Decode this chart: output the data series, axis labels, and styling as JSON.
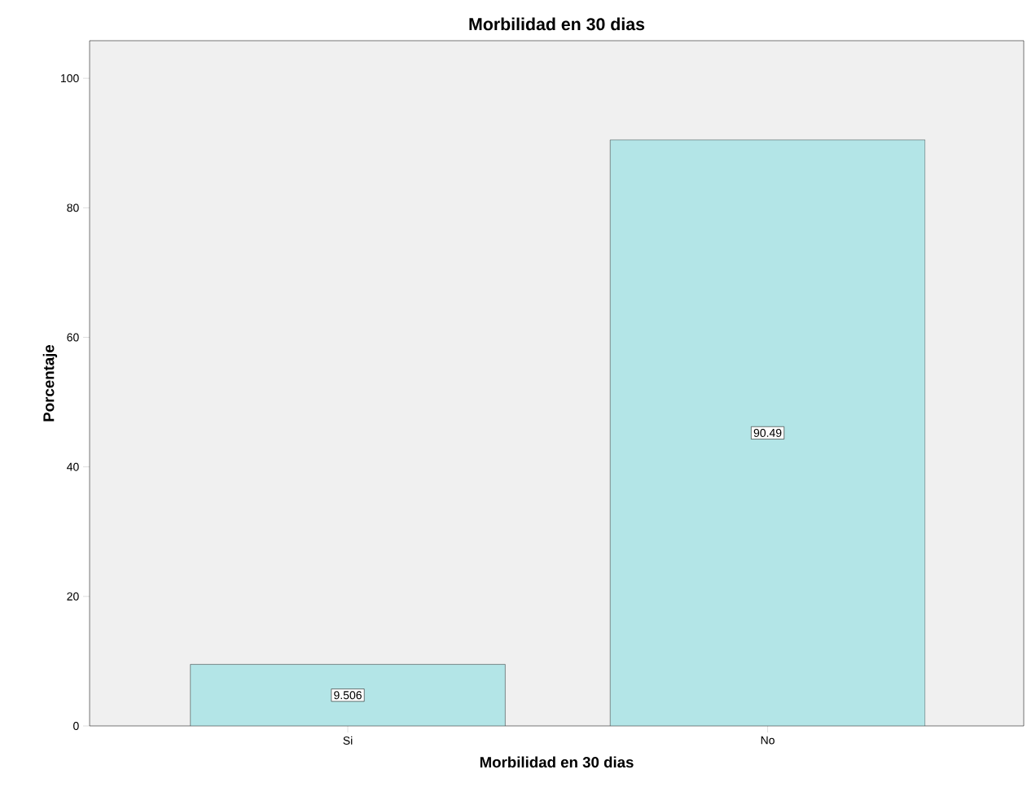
{
  "chart_data": {
    "type": "bar",
    "title": "Morbilidad en 30 dias",
    "xlabel": "Morbilidad en 30 dias",
    "ylabel": "Porcentaje",
    "categories": [
      "Si",
      "No"
    ],
    "values": [
      9.506,
      90.49
    ],
    "color": "#b3e5e7",
    "ylim": [
      0,
      105.8
    ],
    "yticks": [
      0,
      20,
      40,
      60,
      80,
      100
    ],
    "data_labels": true,
    "grid": false
  }
}
